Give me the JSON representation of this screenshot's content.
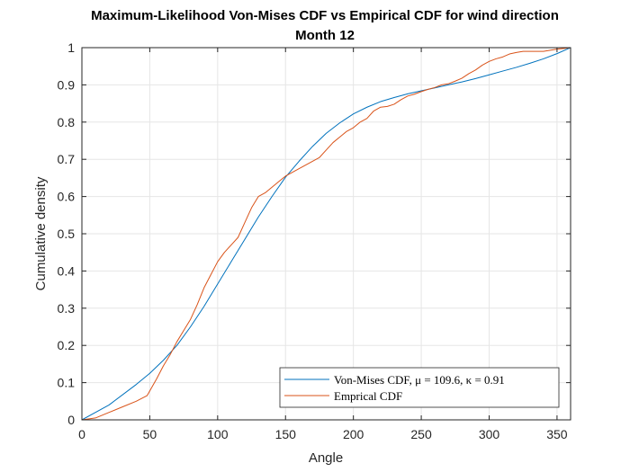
{
  "chart_data": {
    "type": "line",
    "title": "Maximum-Likelihood Von-Mises CDF vs Empirical CDF for wind direction",
    "subtitle": "Month 12",
    "xlabel": "Angle",
    "ylabel": "Cumulative density",
    "xlim": [
      0,
      360
    ],
    "ylim": [
      0,
      1
    ],
    "xticks": [
      0,
      50,
      100,
      150,
      200,
      250,
      300,
      350
    ],
    "yticks": [
      0,
      0.1,
      0.2,
      0.3,
      0.4,
      0.5,
      0.6,
      0.7,
      0.8,
      0.9,
      1
    ],
    "grid": true,
    "legend_position": "bottom-right",
    "legend": [
      "Von-Mises CDF, μ = 109.6, κ = 0.91",
      "Emprical CDF"
    ],
    "series": [
      {
        "name": "Von-Mises CDF, μ = 109.6, κ = 0.91",
        "color": "#0072BD",
        "x": [
          0,
          20,
          40,
          50,
          60,
          70,
          80,
          90,
          100,
          110,
          120,
          130,
          140,
          150,
          160,
          170,
          180,
          190,
          200,
          210,
          220,
          230,
          240,
          250,
          260,
          270,
          280,
          290,
          300,
          310,
          320,
          330,
          340,
          350,
          360
        ],
        "y": [
          0.0,
          0.04,
          0.095,
          0.125,
          0.16,
          0.2,
          0.25,
          0.305,
          0.365,
          0.425,
          0.485,
          0.545,
          0.6,
          0.652,
          0.695,
          0.735,
          0.77,
          0.798,
          0.822,
          0.84,
          0.855,
          0.866,
          0.876,
          0.884,
          0.892,
          0.9,
          0.908,
          0.917,
          0.927,
          0.937,
          0.947,
          0.958,
          0.97,
          0.984,
          1.0
        ]
      },
      {
        "name": "Emprical CDF",
        "color": "#D95319",
        "x": [
          0,
          10,
          20,
          30,
          40,
          48,
          55,
          60,
          65,
          70,
          75,
          80,
          85,
          90,
          95,
          100,
          105,
          110,
          115,
          120,
          125,
          130,
          135,
          140,
          145,
          150,
          155,
          160,
          165,
          170,
          175,
          180,
          185,
          190,
          195,
          200,
          205,
          210,
          215,
          220,
          225,
          230,
          235,
          240,
          245,
          250,
          255,
          260,
          265,
          270,
          275,
          280,
          285,
          290,
          295,
          300,
          305,
          310,
          315,
          320,
          325,
          330,
          335,
          340,
          345,
          350,
          355,
          360
        ],
        "y": [
          0.0,
          0.005,
          0.02,
          0.035,
          0.05,
          0.065,
          0.11,
          0.145,
          0.175,
          0.21,
          0.24,
          0.27,
          0.31,
          0.355,
          0.39,
          0.425,
          0.45,
          0.47,
          0.49,
          0.53,
          0.57,
          0.6,
          0.61,
          0.625,
          0.64,
          0.655,
          0.665,
          0.675,
          0.685,
          0.695,
          0.705,
          0.725,
          0.745,
          0.76,
          0.775,
          0.785,
          0.8,
          0.81,
          0.83,
          0.84,
          0.842,
          0.848,
          0.86,
          0.87,
          0.875,
          0.882,
          0.888,
          0.893,
          0.9,
          0.903,
          0.91,
          0.918,
          0.93,
          0.94,
          0.953,
          0.963,
          0.97,
          0.975,
          0.983,
          0.987,
          0.99,
          0.99,
          0.99,
          0.99,
          0.993,
          0.996,
          0.998,
          1.0
        ]
      }
    ]
  }
}
